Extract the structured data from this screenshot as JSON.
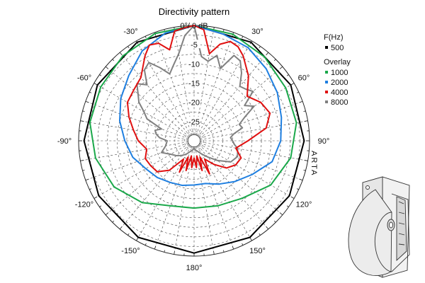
{
  "chart_data": {
    "type": "polar",
    "title": "Directivity pattern",
    "top_label": "0°/ 0 dB",
    "angle_ticks": [
      "-30°",
      "30°",
      "-60°",
      "60°",
      "-90°",
      "90°",
      "-120°",
      "120°",
      "-150°",
      "150°",
      "180°"
    ],
    "angle_values": [
      -30,
      30,
      -60,
      60,
      -90,
      90,
      -120,
      120,
      -150,
      150,
      180
    ],
    "db_ticks": [
      "-5",
      "-10",
      "-15",
      "-20",
      "-25"
    ],
    "db_values": [
      -5,
      -10,
      -15,
      -20,
      -25
    ],
    "r_range": [
      -30,
      0
    ],
    "grid": true,
    "watermark": "ARTA",
    "legend": {
      "position": "right",
      "header": "F(Hz)",
      "overlay_label": "Overlay",
      "main": {
        "name": "500",
        "color": "#000000"
      },
      "overlays": [
        {
          "name": "1000",
          "color": "#1aa84a"
        },
        {
          "name": "2000",
          "color": "#1f7fe0"
        },
        {
          "name": "4000",
          "color": "#e01010"
        },
        {
          "name": "8000",
          "color": "#808080"
        }
      ]
    },
    "series": [
      {
        "name": "500",
        "color": "#000000",
        "angles": [
          0,
          30,
          60,
          90,
          120,
          150,
          180,
          -150,
          -120,
          -90,
          -60,
          -30
        ],
        "db": [
          0,
          -0.4,
          -1.0,
          -1.4,
          -1.4,
          -1.0,
          -0.8,
          -1.0,
          -1.4,
          -1.4,
          -1.0,
          -0.4
        ]
      },
      {
        "name": "1000",
        "color": "#1aa84a",
        "angles": [
          0,
          20,
          40,
          60,
          80,
          100,
          120,
          140,
          160,
          180,
          -160,
          -140,
          -120,
          -100,
          -80,
          -60,
          -40,
          -20
        ],
        "db": [
          0,
          -0.5,
          -1.5,
          -2.5,
          -3.0,
          -4.5,
          -7.0,
          -10.5,
          -12.0,
          -12.5,
          -12.0,
          -9.0,
          -6.0,
          -4.0,
          -2.5,
          -2.0,
          -1.2,
          -0.3
        ]
      },
      {
        "name": "2000",
        "color": "#1f7fe0",
        "angles": [
          0,
          15,
          30,
          45,
          60,
          75,
          90,
          105,
          120,
          135,
          150,
          165,
          180,
          -165,
          -150,
          -135,
          -120,
          -105,
          -90,
          -75,
          -60,
          -45,
          -30,
          -15
        ],
        "db": [
          0,
          -1.2,
          -2.0,
          -3.5,
          -5.0,
          -6.5,
          -7.5,
          -9.0,
          -12.5,
          -15.0,
          -17.0,
          -18.5,
          -18.5,
          -18.0,
          -17.5,
          -16.5,
          -15.5,
          -13.5,
          -12.0,
          -10.0,
          -8.0,
          -6.0,
          -3.0,
          -1.0
        ]
      },
      {
        "name": "4000",
        "color": "#e01010",
        "angles": [
          0,
          5,
          10,
          15,
          20,
          25,
          30,
          40,
          50,
          60,
          70,
          80,
          90,
          100,
          110,
          120,
          130,
          140,
          150,
          155,
          160,
          165,
          170,
          175,
          180,
          -175,
          -170,
          -165,
          -160,
          -155,
          -150,
          -140,
          -130,
          -120,
          -110,
          -100,
          -90,
          -80,
          -70,
          -60,
          -50,
          -40,
          -30,
          -25,
          -20,
          -15,
          -10,
          -5
        ],
        "db": [
          0,
          -1.0,
          -7.0,
          -4.0,
          -2.5,
          -3.0,
          -4.5,
          -8.0,
          -12.0,
          -10.0,
          -9.0,
          -11.0,
          -16.0,
          -19.0,
          -17.0,
          -17.5,
          -19.0,
          -22.0,
          -24.5,
          -20.5,
          -25.5,
          -22.0,
          -26.0,
          -23.0,
          -25.5,
          -23.0,
          -26.0,
          -22.0,
          -25.5,
          -21.0,
          -24.5,
          -20.0,
          -17.5,
          -17.0,
          -16.5,
          -17.5,
          -15.5,
          -14.0,
          -12.0,
          -10.0,
          -9.5,
          -8.5,
          -4.5,
          -2.5,
          -3.0,
          -5.5,
          -1.0,
          -0.5
        ]
      },
      {
        "name": "8000",
        "color": "#808080",
        "angles": [
          0,
          5,
          10,
          15,
          20,
          25,
          30,
          35,
          40,
          45,
          50,
          55,
          60,
          65,
          70,
          75,
          80,
          85,
          90,
          95,
          100,
          110,
          120,
          130,
          140,
          150,
          160,
          170,
          180,
          -170,
          -160,
          -150,
          -140,
          -130,
          -120,
          -110,
          -100,
          -90,
          -85,
          -80,
          -75,
          -70,
          -65,
          -60,
          -55,
          -50,
          -45,
          -40,
          -35,
          -30,
          -25,
          -20,
          -15,
          -10,
          -5
        ],
        "db": [
          0,
          -8.0,
          -9.0,
          -7.0,
          -10.0,
          -5.5,
          -6.0,
          -8.5,
          -11.5,
          -11.0,
          -10.0,
          -14.0,
          -12.0,
          -15.5,
          -17.5,
          -17.0,
          -19.5,
          -20.5,
          -20.0,
          -19.5,
          -18.5,
          -18.0,
          -19.0,
          -22.0,
          -24.5,
          -26.0,
          -27.0,
          -27.5,
          -28.0,
          -27.5,
          -27.0,
          -26.0,
          -25.0,
          -24.0,
          -23.0,
          -21.0,
          -22.5,
          -23.0,
          -21.0,
          -20.0,
          -19.5,
          -21.0,
          -16.5,
          -15.0,
          -12.5,
          -11.0,
          -9.0,
          -11.0,
          -7.5,
          -6.5,
          -9.0,
          -11.5,
          -9.5,
          -7.0,
          -2.5
        ]
      }
    ]
  }
}
